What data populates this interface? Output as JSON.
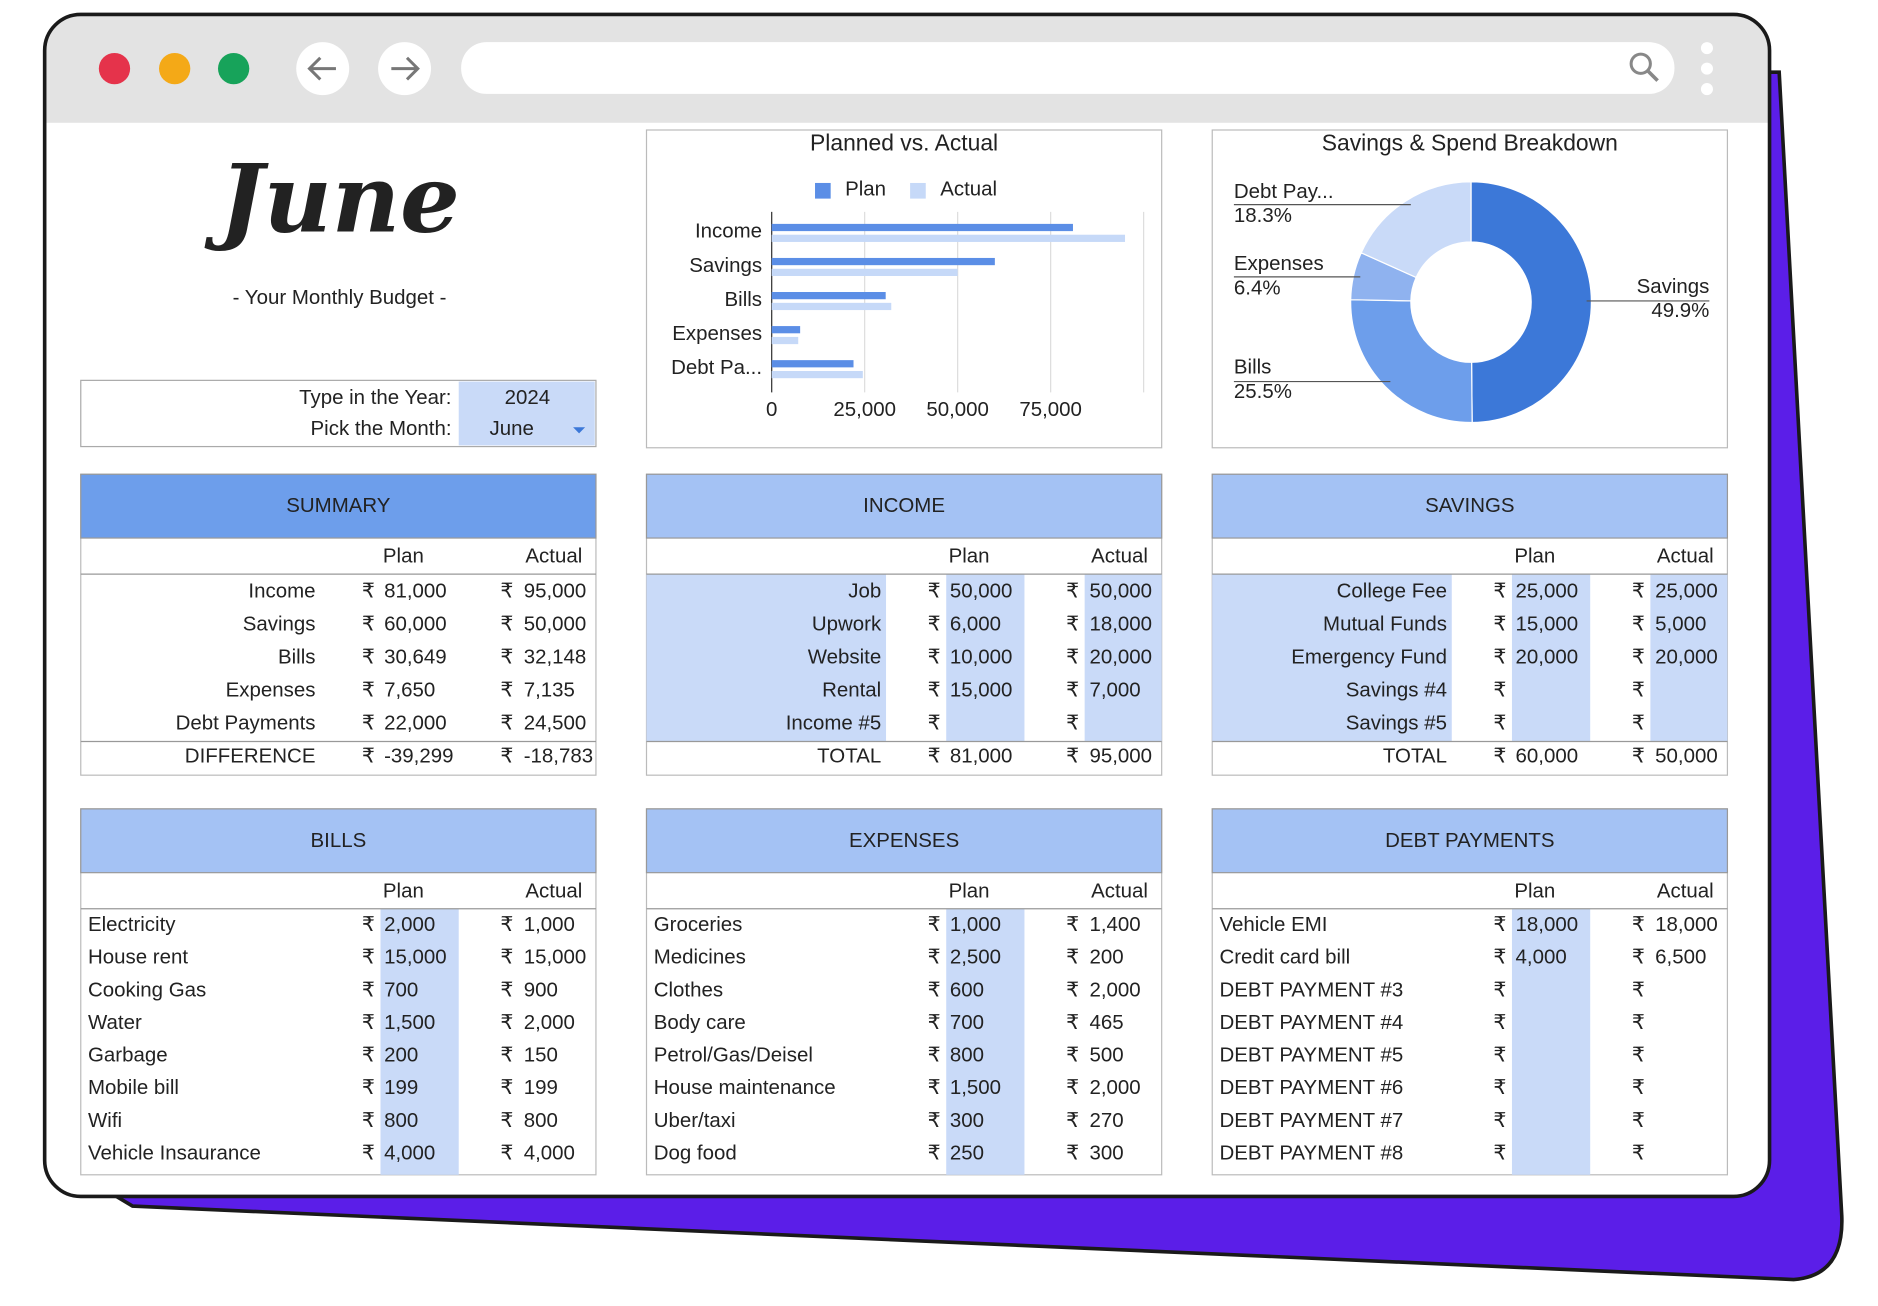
{
  "chart_data": [
    {
      "type": "bar",
      "title": "Planned vs. Actual",
      "categories": [
        "Income",
        "Savings",
        "Bills",
        "Expenses",
        "Debt Pa..."
      ],
      "series": [
        {
          "name": "Plan",
          "color": "#5b8ee6",
          "values": [
            81000,
            60000,
            30649,
            7650,
            22000
          ]
        },
        {
          "name": "Actual",
          "color": "#c6d9f8",
          "values": [
            95000,
            50000,
            32148,
            7135,
            24500
          ]
        }
      ],
      "xlim": [
        0,
        100000
      ],
      "xticks": [
        0,
        {
          "value": 25000,
          "label": "25,000"
        },
        {
          "value": 50000,
          "label": "50,000"
        },
        {
          "value": 75000,
          "label": "75,000"
        }
      ],
      "grid": true
    },
    {
      "type": "donut",
      "title": "Savings & Spend Breakdown",
      "categories": [
        "Savings",
        "Bills",
        "Expenses",
        "Debt Pay..."
      ],
      "values": [
        49.9,
        25.5,
        6.4,
        18.3
      ],
      "value_labels": [
        "49.9%",
        "25.5%",
        "6.4%",
        "18.3%"
      ],
      "colors": [
        "#3c78d8",
        "#6d9eeb",
        "#8fb2ef",
        "#c9daf8"
      ]
    }
  ],
  "header": {
    "title": "June",
    "subtitle": "- Your Monthly Budget -"
  },
  "selector": {
    "year_label": "Type in the Year:",
    "year": 2024,
    "month_label": "Pick the Month:",
    "month": "June"
  },
  "currency": "₹",
  "tables": [
    {
      "title": "SUMMARY",
      "columns": [
        "Plan",
        "Actual"
      ],
      "rows": [
        [
          "Income",
          "81,000",
          "95,000"
        ],
        [
          "Savings",
          "60,000",
          "50,000"
        ],
        [
          "Bills",
          "30,649",
          "32,148"
        ],
        [
          "Expenses",
          "7,650",
          "7,135"
        ],
        [
          "Debt Payments",
          "22,000",
          "24,500"
        ]
      ],
      "footer": [
        "DIFFERENCE",
        "-39,299",
        "-18,783"
      ]
    },
    {
      "title": "INCOME",
      "columns": [
        "Plan",
        "Actual"
      ],
      "rows": [
        [
          "Job",
          "50,000",
          "50,000"
        ],
        [
          "Upwork",
          "6,000",
          "18,000"
        ],
        [
          "Website",
          "10,000",
          "20,000"
        ],
        [
          "Rental",
          "15,000",
          "7,000"
        ],
        [
          "Income #5",
          null,
          null
        ]
      ],
      "footer": [
        "TOTAL",
        "81,000",
        "95,000"
      ]
    },
    {
      "title": "SAVINGS",
      "columns": [
        "Plan",
        "Actual"
      ],
      "rows": [
        [
          "College Fee",
          "25,000",
          "25,000"
        ],
        [
          "Mutual Funds",
          "15,000",
          "5,000"
        ],
        [
          "Emergency Fund",
          "20,000",
          "20,000"
        ],
        [
          "Savings #4",
          null,
          null
        ],
        [
          "Savings #5",
          null,
          null
        ]
      ],
      "footer": [
        "TOTAL",
        "60,000",
        "50,000"
      ]
    },
    {
      "title": "BILLS",
      "columns": [
        "Plan",
        "Actual"
      ],
      "rows": [
        [
          "Electricity",
          "2,000",
          "1,000"
        ],
        [
          "House rent",
          "15,000",
          "15,000"
        ],
        [
          "Cooking Gas",
          "700",
          "900"
        ],
        [
          "Water",
          "1,500",
          "2,000"
        ],
        [
          "Garbage",
          "200",
          "150"
        ],
        [
          "Mobile bill",
          "199",
          "199"
        ],
        [
          "Wifi",
          "800",
          "800"
        ],
        [
          "Vehicle Insaurance",
          "4,000",
          "4,000"
        ]
      ]
    },
    {
      "title": "EXPENSES",
      "columns": [
        "Plan",
        "Actual"
      ],
      "rows": [
        [
          "Groceries",
          "1,000",
          "1,400"
        ],
        [
          "Medicines",
          "2,500",
          "200"
        ],
        [
          "Clothes",
          "600",
          "2,000"
        ],
        [
          "Body care",
          "700",
          "465"
        ],
        [
          "Petrol/Gas/Deisel",
          "800",
          "500"
        ],
        [
          "House maintenance",
          "1,500",
          "2,000"
        ],
        [
          "Uber/taxi",
          "300",
          "270"
        ],
        [
          "Dog food",
          "250",
          "300"
        ]
      ]
    },
    {
      "title": "DEBT PAYMENTS",
      "columns": [
        "Plan",
        "Actual"
      ],
      "rows": [
        [
          "Vehicle EMI",
          "18,000",
          "18,000"
        ],
        [
          "Credit card bill",
          "4,000",
          "6,500"
        ],
        [
          "DEBT PAYMENT #3",
          null,
          null
        ],
        [
          "DEBT PAYMENT #4",
          null,
          null
        ],
        [
          "DEBT PAYMENT #5",
          null,
          null
        ],
        [
          "DEBT PAYMENT #6",
          null,
          null
        ],
        [
          "DEBT PAYMENT #7",
          null,
          null
        ],
        [
          "DEBT PAYMENT #8",
          null,
          null
        ]
      ]
    }
  ]
}
